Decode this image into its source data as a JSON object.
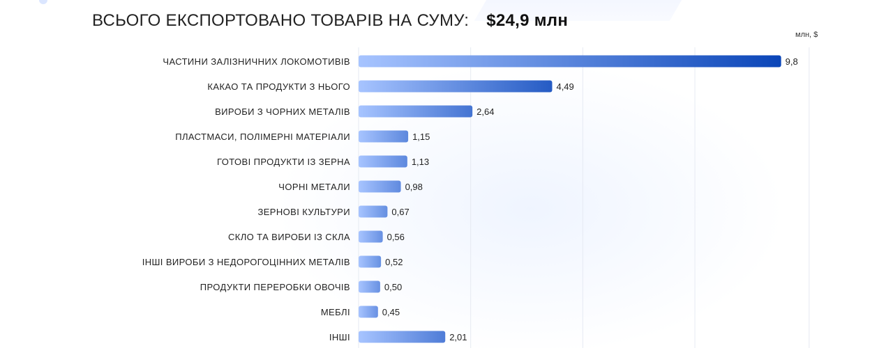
{
  "header": {
    "title": "ВСЬОГО ЕКСПОРТОВАНО ТОВАРІВ НА СУМУ:",
    "total": "$24,9 млн"
  },
  "colors": {
    "bar_start": "#a7c4ff",
    "bar_end": "#0a45b8",
    "grid": "#e6eaf2",
    "text": "#222222"
  },
  "chart_data": {
    "type": "bar",
    "orientation": "horizontal",
    "title": "ВСЬОГО ЕКСПОРТОВАНО ТОВАРІВ НА СУМУ: $24,9 млн",
    "unit_label": "млн, $",
    "xlim": [
      0,
      10
    ],
    "grid": true,
    "categories": [
      "ЧАСТИНИ ЗАЛІЗНИЧНИХ ЛОКОМОТИВІВ",
      "КАКАО ТА ПРОДУКТИ З НЬОГО",
      "ВИРОБИ З ЧОРНИХ МЕТАЛІВ",
      "ПЛАСТМАСИ, ПОЛІМЕРНІ МАТЕРІАЛИ",
      "ГОТОВІ ПРОДУКТИ ІЗ ЗЕРНА",
      "ЧОРНІ МЕТАЛИ",
      "ЗЕРНОВІ КУЛЬТУРИ",
      "СКЛО ТА ВИРОБИ ІЗ СКЛА",
      "ІНШІ ВИРОБИ З НЕДОРОГОЦІННИХ МЕТАЛІВ",
      "ПРОДУКТИ ПЕРЕРОБКИ ОВОЧІВ",
      "МЕБЛІ",
      "ІНШІ"
    ],
    "values": [
      9.8,
      4.49,
      2.64,
      1.15,
      1.13,
      0.98,
      0.67,
      0.56,
      0.52,
      0.5,
      0.45,
      2.01
    ],
    "value_labels": [
      "9,8",
      "4,49",
      "2,64",
      "1,15",
      "1,13",
      "0,98",
      "0,67",
      "0,56",
      "0,52",
      "0,50",
      "0,45",
      "2,01"
    ]
  }
}
